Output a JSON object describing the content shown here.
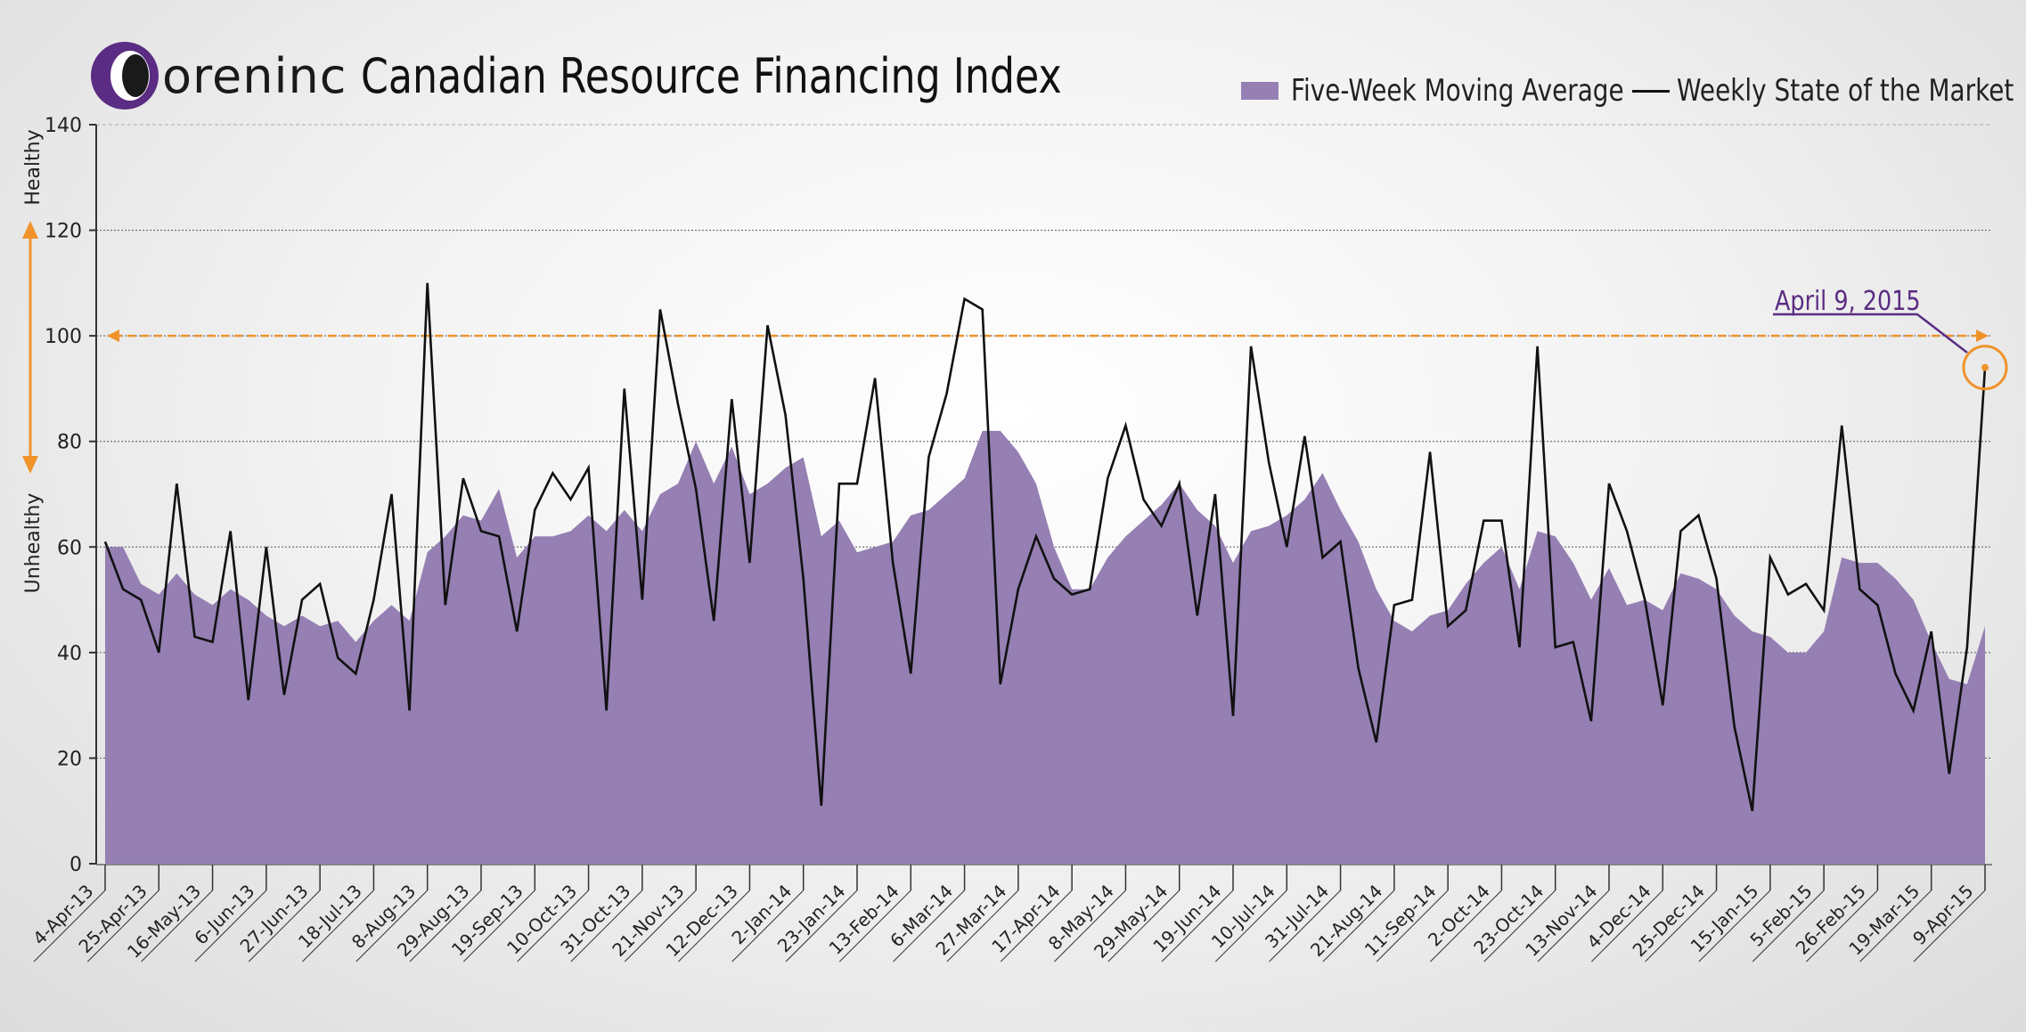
{
  "header": {
    "logo_text": "oreninc",
    "title": "Canadian Resource Financing Index"
  },
  "legend": {
    "area_label": "Five-Week Moving Average",
    "line_label": "Weekly State of the Market"
  },
  "side_labels": {
    "top": "Healthy",
    "bottom": "Unhealthy"
  },
  "annotation": {
    "text": "April 9, 2015",
    "value": 94
  },
  "colors": {
    "area": "#957fb3",
    "line": "#111111",
    "threshold": "#f0932b",
    "annotation": "#5b2c83"
  },
  "chart_data": {
    "type": "area",
    "title": "Canadian Resource Financing Index",
    "xlabel": "",
    "ylabel": "",
    "ylim": [
      0,
      140
    ],
    "yticks": [
      0,
      20,
      40,
      60,
      80,
      100,
      120,
      140
    ],
    "threshold": 100,
    "grid": true,
    "legend_position": "top-right",
    "x_tick_labels": [
      "4-Apr-13",
      "25-Apr-13",
      "16-May-13",
      "6-Jun-13",
      "27-Jun-13",
      "18-Jul-13",
      "8-Aug-13",
      "29-Aug-13",
      "19-Sep-13",
      "10-Oct-13",
      "31-Oct-13",
      "21-Nov-13",
      "12-Dec-13",
      "2-Jan-14",
      "23-Jan-14",
      "13-Feb-14",
      "6-Mar-14",
      "27-Mar-14",
      "17-Apr-14",
      "8-May-14",
      "29-May-14",
      "19-Jun-14",
      "10-Jul-14",
      "31-Jul-14",
      "21-Aug-14",
      "11-Sep-14",
      "2-Oct-14",
      "23-Oct-14",
      "13-Nov-14",
      "4-Dec-14",
      "25-Dec-14",
      "15-Jan-15",
      "5-Feb-15",
      "26-Feb-15",
      "19-Mar-15",
      "9-Apr-15"
    ],
    "x_tick_step_weeks": 3,
    "series": [
      {
        "name": "Five-Week Moving Average",
        "type": "area",
        "values": [
          60,
          60,
          53,
          51,
          55,
          51,
          49,
          52,
          50,
          47,
          45,
          47,
          45,
          46,
          42,
          46,
          49,
          46,
          59,
          62,
          66,
          65,
          71,
          58,
          62,
          62,
          63,
          66,
          63,
          67,
          63,
          70,
          72,
          80,
          72,
          79,
          70,
          72,
          75,
          77,
          62,
          65,
          59,
          60,
          61,
          66,
          67,
          70,
          73,
          82,
          82,
          78,
          72,
          60,
          52,
          52,
          58,
          62,
          65,
          68,
          72,
          67,
          64,
          57,
          63,
          64,
          66,
          69,
          74,
          67,
          61,
          52,
          46,
          44,
          47,
          48,
          53,
          57,
          60,
          52,
          63,
          62,
          57,
          50,
          56,
          49,
          50,
          48,
          55,
          54,
          52,
          47,
          44,
          43,
          40,
          40,
          44,
          58,
          57,
          57,
          54,
          50,
          42,
          35,
          34,
          45
        ]
      },
      {
        "name": "Weekly State of the Market",
        "type": "line",
        "values": [
          61,
          52,
          50,
          40,
          72,
          43,
          42,
          63,
          31,
          60,
          32,
          50,
          53,
          39,
          36,
          50,
          70,
          29,
          110,
          49,
          73,
          63,
          62,
          44,
          67,
          74,
          69,
          75,
          29,
          90,
          50,
          105,
          87,
          71,
          46,
          88,
          57,
          102,
          85,
          54,
          11,
          72,
          72,
          92,
          57,
          36,
          77,
          89,
          107,
          105,
          34,
          52,
          62,
          54,
          51,
          52,
          73,
          83,
          69,
          64,
          72,
          47,
          70,
          28,
          98,
          76,
          60,
          81,
          58,
          61,
          37,
          23,
          49,
          50,
          78,
          45,
          48,
          65,
          65,
          41,
          98,
          41,
          42,
          27,
          72,
          63,
          50,
          30,
          63,
          66,
          54,
          26,
          10,
          58,
          51,
          53,
          48,
          83,
          52,
          49,
          36,
          29,
          44,
          17,
          41,
          94
        ]
      }
    ]
  }
}
